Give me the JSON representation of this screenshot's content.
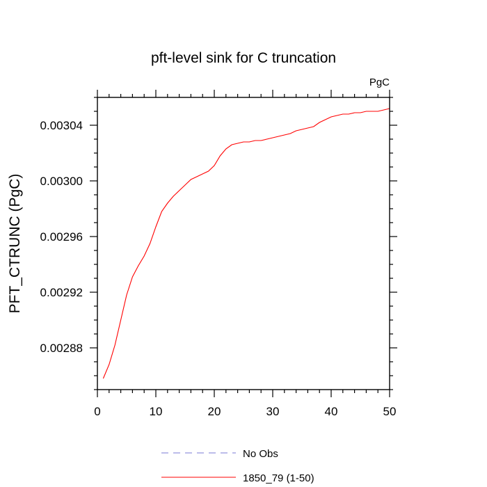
{
  "chart_data": {
    "type": "line",
    "title": "pft-level sink for C truncation",
    "units_label": "PgC",
    "ylabel": "PFT_CTRUNC  (PgC)",
    "xlabel": "",
    "xlim": [
      0,
      50
    ],
    "ylim": [
      0.00285,
      0.00306
    ],
    "x_ticks": [
      0,
      10,
      20,
      30,
      40,
      50
    ],
    "y_ticks": [
      0.00288,
      0.00292,
      0.00296,
      0.003,
      0.00304
    ],
    "y_tick_labels": [
      "0.00288",
      "0.00292",
      "0.00296",
      "0.00300",
      "0.00304"
    ],
    "grid": false,
    "legend_placement": "bottom-center",
    "series": [
      {
        "name": "No Obs",
        "color": "#7a7ad6",
        "dash": "dashed",
        "x": [],
        "values": []
      },
      {
        "name": "1850_79 (1-50)",
        "color": "#ff0000",
        "dash": "solid",
        "x": [
          1,
          2,
          3,
          4,
          5,
          6,
          7,
          8,
          9,
          10,
          11,
          12,
          13,
          14,
          15,
          16,
          17,
          18,
          19,
          20,
          21,
          22,
          23,
          24,
          25,
          26,
          27,
          28,
          29,
          30,
          31,
          32,
          33,
          34,
          35,
          36,
          37,
          38,
          39,
          40,
          41,
          42,
          43,
          44,
          45,
          46,
          47,
          48,
          49,
          50
        ],
        "values": [
          0.002858,
          0.002868,
          0.002882,
          0.0029,
          0.002918,
          0.002931,
          0.002939,
          0.002946,
          0.002955,
          0.002967,
          0.002978,
          0.002984,
          0.002989,
          0.002993,
          0.002997,
          0.003001,
          0.003003,
          0.003005,
          0.003007,
          0.003011,
          0.003018,
          0.003023,
          0.003026,
          0.003027,
          0.003028,
          0.003028,
          0.003029,
          0.003029,
          0.00303,
          0.003031,
          0.003032,
          0.003033,
          0.003034,
          0.003036,
          0.003037,
          0.003038,
          0.003039,
          0.003042,
          0.003044,
          0.003046,
          0.003047,
          0.003048,
          0.003048,
          0.003049,
          0.003049,
          0.00305,
          0.00305,
          0.00305,
          0.003051,
          0.003052
        ]
      }
    ]
  }
}
